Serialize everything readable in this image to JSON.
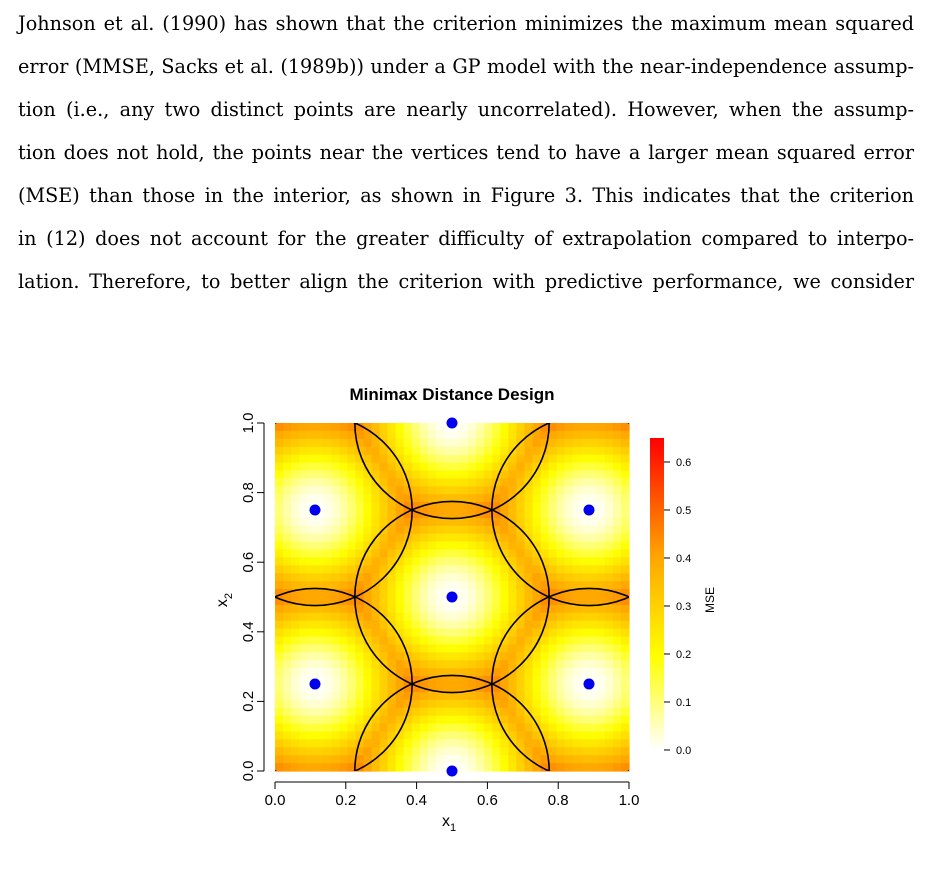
{
  "paragraph": {
    "lines": [
      "Johnson et al. (1990) has shown that the criterion minimizes the maximum mean squared",
      "error (MMSE, Sacks et al. (1989b)) under a GP model with the near-independence assump-",
      "tion (i.e., any two distinct points are nearly uncorrelated). However, when the assump-",
      "tion does not hold, the points near the vertices tend to have a larger mean squared error",
      "(MSE) than those in the interior, as shown in Figure 3. This indicates that the criterion",
      "in (12) does not account for the greater difficulty of extrapolation compared to interpo-",
      "lation. Therefore, to better align the criterion with predictive performance, we consider"
    ]
  },
  "chart_data": {
    "type": "heatmap",
    "title": "Minimax Distance Design",
    "xlabel": "x",
    "xlabel_sub": "1",
    "ylabel": "x",
    "ylabel_sub": "2",
    "xlim": [
      0,
      1
    ],
    "ylim": [
      0,
      1
    ],
    "x_ticks": [
      "0.0",
      "0.2",
      "0.4",
      "0.6",
      "0.8",
      "1.0"
    ],
    "y_ticks": [
      "0.0",
      "0.2",
      "0.4",
      "0.6",
      "0.8",
      "1.0"
    ],
    "colorbar": {
      "label": "MSE",
      "ticks": [
        "0.0",
        "0.1",
        "0.2",
        "0.3",
        "0.4",
        "0.5",
        "0.6"
      ],
      "range": [
        0,
        0.65
      ]
    },
    "design_points": [
      {
        "x": 0.5,
        "y": 1.0
      },
      {
        "x": 0.113,
        "y": 0.75
      },
      {
        "x": 0.887,
        "y": 0.75
      },
      {
        "x": 0.5,
        "y": 0.5
      },
      {
        "x": 0.113,
        "y": 0.25
      },
      {
        "x": 0.887,
        "y": 0.25
      },
      {
        "x": 0.5,
        "y": 0.0
      }
    ],
    "circle_radius": 0.2745,
    "point_color": "#0000ee",
    "colors": [
      "#ffffff",
      "#ffff00",
      "#ffa500",
      "#ff0000"
    ]
  }
}
